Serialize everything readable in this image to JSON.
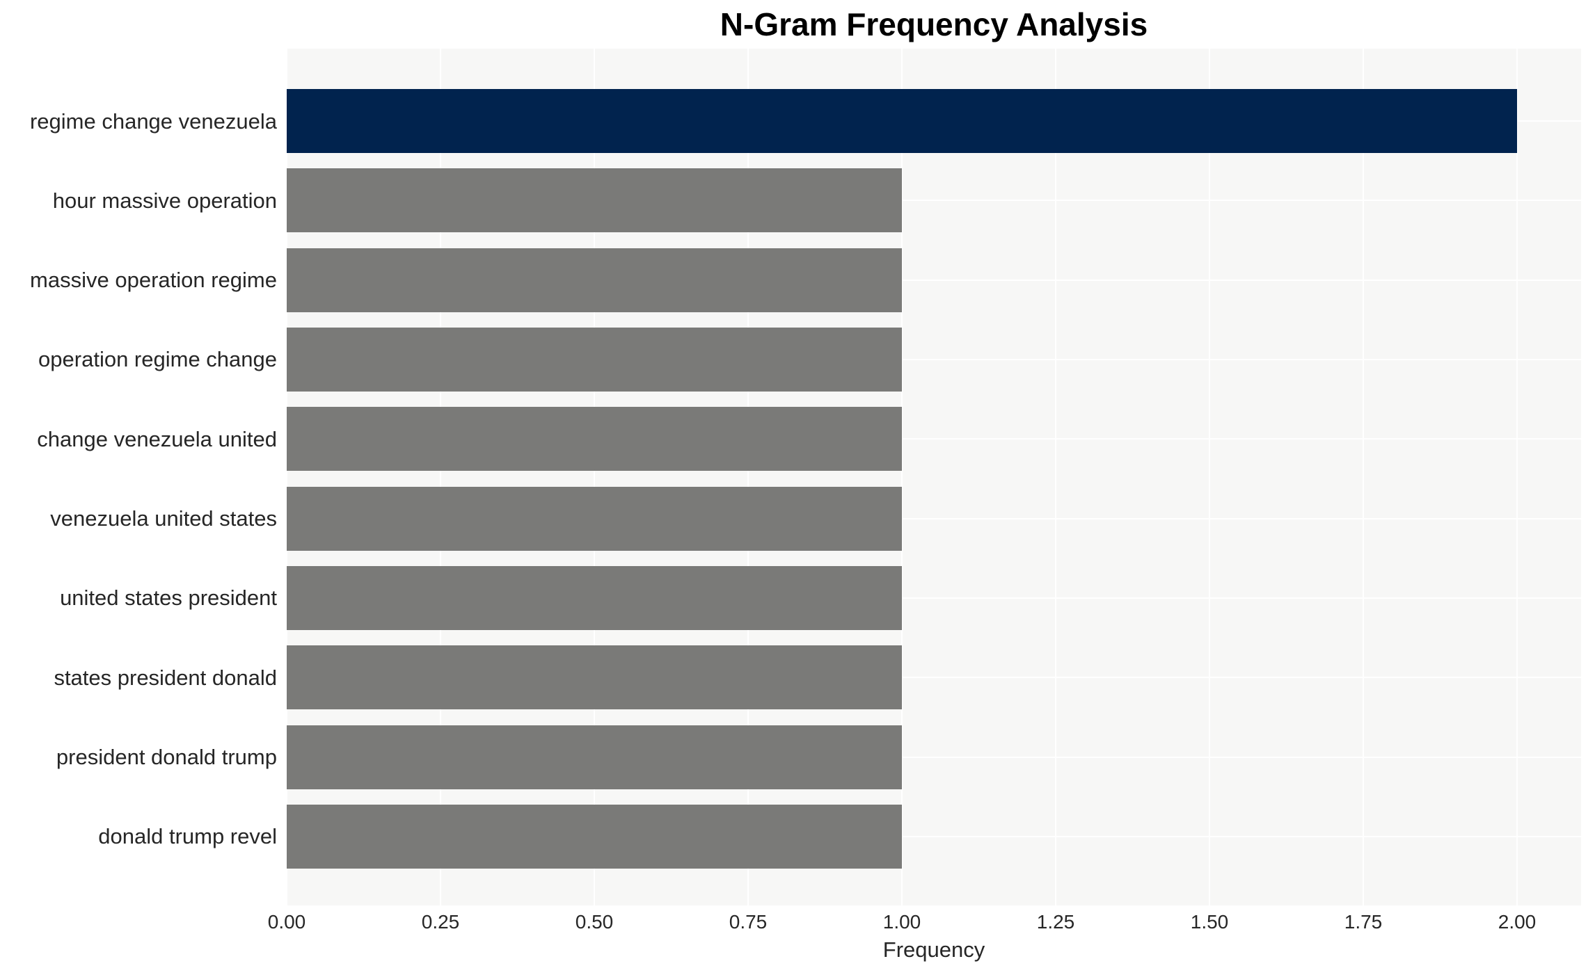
{
  "title": "N-Gram Frequency Analysis",
  "colors": {
    "figure_background": "#ffffff",
    "plot_background": "#f7f7f6",
    "gridline": "#ffffff",
    "highlight_bar": "#01234e",
    "default_bar": "#7a7a78",
    "text": "#262626",
    "title_text": "#000000"
  },
  "chart_data": {
    "type": "bar",
    "orientation": "horizontal",
    "title": "N-Gram Frequency Analysis",
    "xlabel": "Frequency",
    "ylabel": "",
    "categories": [
      "regime change venezuela",
      "hour massive operation",
      "massive operation regime",
      "operation regime change",
      "change venezuela united",
      "venezuela united states",
      "united states president",
      "states president donald",
      "president donald trump",
      "donald trump revel"
    ],
    "values": [
      2,
      1,
      1,
      1,
      1,
      1,
      1,
      1,
      1,
      1
    ],
    "highlight_index": 0,
    "xlim": [
      0,
      2.1
    ],
    "xticks": [
      {
        "value": 0.0,
        "label": "0.00"
      },
      {
        "value": 0.25,
        "label": "0.25"
      },
      {
        "value": 0.5,
        "label": "0.50"
      },
      {
        "value": 0.75,
        "label": "0.75"
      },
      {
        "value": 1.0,
        "label": "1.00"
      },
      {
        "value": 1.25,
        "label": "1.25"
      },
      {
        "value": 1.5,
        "label": "1.50"
      },
      {
        "value": 1.75,
        "label": "1.75"
      },
      {
        "value": 2.0,
        "label": "2.00"
      }
    ],
    "grid": true,
    "legend": "none"
  }
}
